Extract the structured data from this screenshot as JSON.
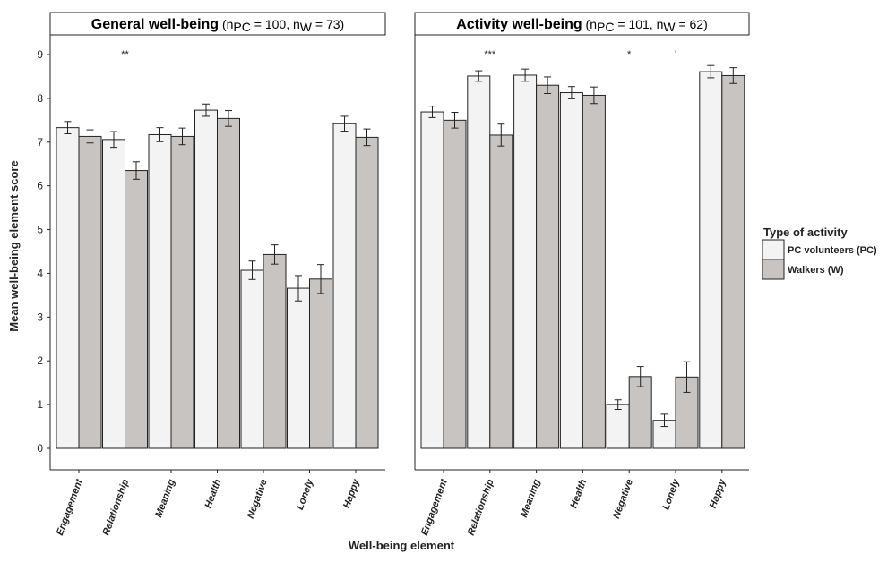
{
  "chart_data": {
    "type": "bar",
    "ylabel": "Mean well-being element score",
    "xlabel": "Well-being element",
    "ylim": [
      0,
      9
    ],
    "yticks": [
      0,
      1,
      2,
      3,
      4,
      5,
      6,
      7,
      8,
      9
    ],
    "categories": [
      "Engagement",
      "Relationship",
      "Meaning",
      "Health",
      "Negative",
      "Lonely",
      "Happy"
    ],
    "legend": {
      "title": "Type of activity",
      "position": "right",
      "entries": [
        {
          "name": "PC volunteers (PC)",
          "color": "#f3f3f3"
        },
        {
          "name": "Walkers (W)",
          "color": "#c8c4c2"
        }
      ]
    },
    "panels": [
      {
        "title": "General well-being",
        "n_pc_label": "n",
        "n_pc_sub": "PC",
        "n_pc_rest": " = 100, ",
        "n_w_label": "n",
        "n_w_sub": "W",
        "n_w_rest": " = 73)",
        "n_open": " (",
        "series": [
          {
            "name": "PC volunteers (PC)",
            "values": [
              7.33,
              7.06,
              7.17,
              7.73,
              4.07,
              3.66,
              7.42
            ],
            "errors": [
              0.14,
              0.18,
              0.16,
              0.14,
              0.21,
              0.29,
              0.17
            ]
          },
          {
            "name": "Walkers (W)",
            "values": [
              7.13,
              6.35,
              7.13,
              7.54,
              4.43,
              3.87,
              7.11
            ],
            "errors": [
              0.15,
              0.2,
              0.19,
              0.18,
              0.22,
              0.33,
              0.19
            ]
          }
        ],
        "significance": [
          {
            "category": "Relationship",
            "label": "**"
          }
        ]
      },
      {
        "title": "Activity well-being",
        "n_pc_label": "n",
        "n_pc_sub": "PC",
        "n_pc_rest": " = 101, ",
        "n_w_label": "n",
        "n_w_sub": "W",
        "n_w_rest": " = 62)",
        "n_open": " (",
        "series": [
          {
            "name": "PC volunteers (PC)",
            "values": [
              7.69,
              8.51,
              8.53,
              8.13,
              1.0,
              0.64,
              8.61
            ],
            "errors": [
              0.13,
              0.12,
              0.14,
              0.14,
              0.11,
              0.14,
              0.14
            ]
          },
          {
            "name": "Walkers (W)",
            "values": [
              7.5,
              7.16,
              8.3,
              8.07,
              1.64,
              1.63,
              8.52
            ],
            "errors": [
              0.18,
              0.25,
              0.19,
              0.19,
              0.23,
              0.35,
              0.18
            ]
          }
        ],
        "significance": [
          {
            "category": "Relationship",
            "label": "***"
          },
          {
            "category": "Negative",
            "label": "*"
          },
          {
            "category": "Lonely",
            "label": "'"
          }
        ]
      }
    ]
  }
}
